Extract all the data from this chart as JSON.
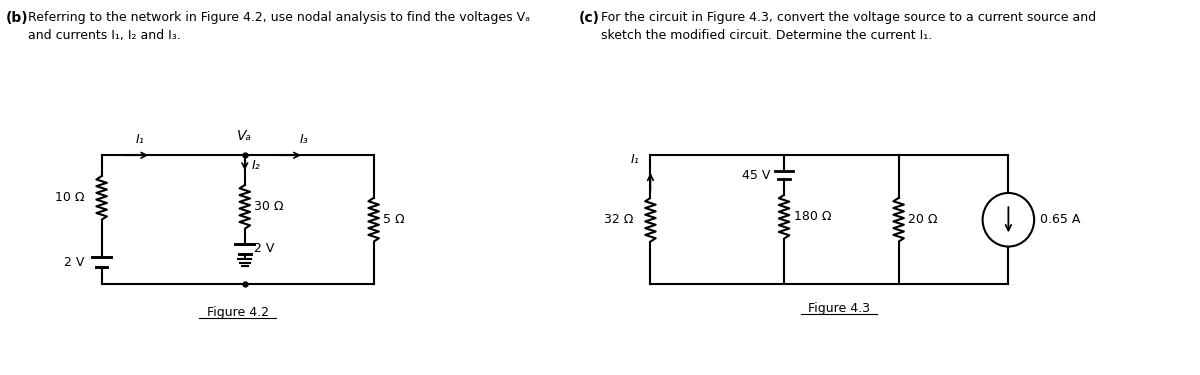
{
  "bg_color": "#ffffff",
  "text_color": "#000000",
  "line_color": "#000000",
  "part_b": {
    "label": "(b)",
    "text_line1": "Referring to the network in Figure 4.2, use nodal analysis to find the voltages Vₐ",
    "text_line2": "and currents I₁, I₂ and I₃.",
    "figure_label": "Figure 4.2",
    "resistors": [
      "10 Ω",
      "30 Ω",
      "5 Ω"
    ],
    "voltages": [
      "2 V",
      "2 V"
    ],
    "node_label": "Vₐ",
    "currents": [
      "I₁",
      "I₂",
      "I₃"
    ]
  },
  "part_c": {
    "label": "(c)",
    "text_line1": "For the circuit in Figure 4.3, convert the voltage source to a current source and",
    "text_line2": "sketch the modified circuit. Determine the current I₁.",
    "figure_label": "Figure 4.3",
    "resistors": [
      "32 Ω",
      "45 V",
      "180 Ω",
      "20 Ω"
    ],
    "current_source": "0.65 A",
    "current_label": "I₁"
  }
}
